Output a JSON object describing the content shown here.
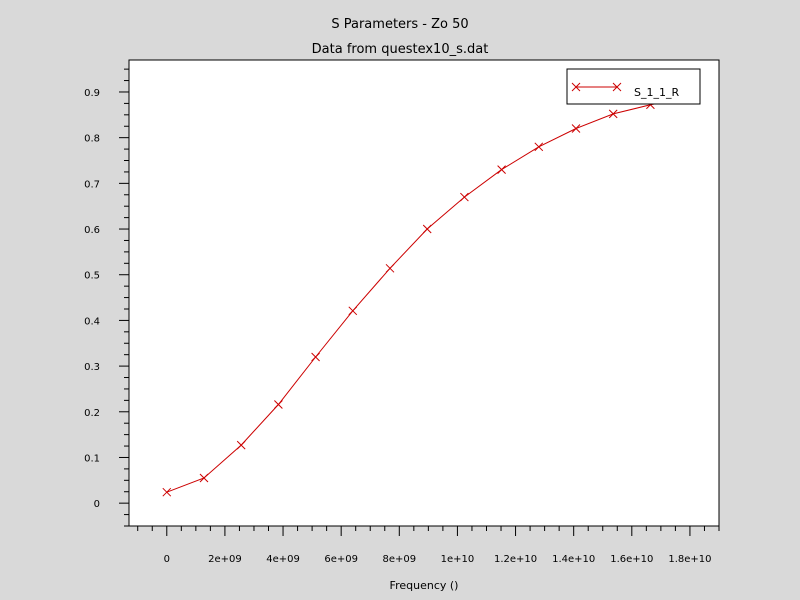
{
  "chart_data": {
    "type": "line",
    "title": "S Parameters - Zo 50",
    "subtitle": "Data from questex10_s.dat",
    "xlabel": "Frequency ()",
    "ylabel": "",
    "xlim": [
      -1300000000,
      19000000000
    ],
    "ylim": [
      -0.05,
      0.97
    ],
    "x_ticks": [
      {
        "value": 0,
        "label": "0"
      },
      {
        "value": 2000000000,
        "label": "2e+09"
      },
      {
        "value": 4000000000,
        "label": "4e+09"
      },
      {
        "value": 6000000000,
        "label": "6e+09"
      },
      {
        "value": 8000000000,
        "label": "8e+09"
      },
      {
        "value": 10000000000,
        "label": "1e+10"
      },
      {
        "value": 12000000000,
        "label": "1.2e+10"
      },
      {
        "value": 14000000000,
        "label": "1.4e+10"
      },
      {
        "value": 16000000000,
        "label": "1.6e+10"
      },
      {
        "value": 18000000000,
        "label": "1.8e+10"
      }
    ],
    "y_ticks": [
      {
        "value": 0,
        "label": "0"
      },
      {
        "value": 0.1,
        "label": "0.1"
      },
      {
        "value": 0.2,
        "label": "0.2"
      },
      {
        "value": 0.3,
        "label": "0.3"
      },
      {
        "value": 0.4,
        "label": "0.4"
      },
      {
        "value": 0.5,
        "label": "0.5"
      },
      {
        "value": 0.6,
        "label": "0.6"
      },
      {
        "value": 0.7,
        "label": "0.7"
      },
      {
        "value": 0.8,
        "label": "0.8"
      },
      {
        "value": 0.9,
        "label": "0.9"
      }
    ],
    "grid": false,
    "legend_position": "top-right",
    "series": [
      {
        "name": "S_1_1_R",
        "color": "#cc0000",
        "marker": "x",
        "x": [
          0,
          1280000000,
          2560000000,
          3840000000,
          5120000000,
          6400000000,
          7680000000,
          8960000000,
          10240000000,
          11520000000,
          12800000000,
          14080000000,
          15360000000,
          16640000000,
          17920000000
        ],
        "y": [
          0.024,
          0.055,
          0.127,
          0.216,
          0.32,
          0.421,
          0.514,
          0.6,
          0.67,
          0.73,
          0.78,
          0.82,
          0.852,
          0.872,
          0.888
        ]
      }
    ]
  }
}
